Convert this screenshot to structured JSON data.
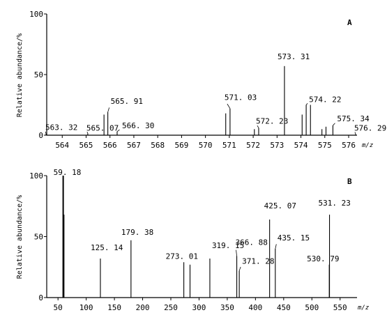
{
  "chart_data": [
    {
      "type": "bar",
      "panel_label": "A",
      "ylabel": "Relative abundance/%",
      "xlabel": "m/z",
      "xlim": [
        563.35,
        576.35
      ],
      "ylim": [
        0,
        100
      ],
      "xticks": [
        564,
        565,
        566,
        567,
        568,
        569,
        570,
        571,
        572,
        573,
        574,
        575,
        576
      ],
      "yticks": [
        0,
        50,
        100
      ],
      "peaks": [
        {
          "mz": 563.32,
          "rel": 1
        },
        {
          "mz": 565.07,
          "rel": 1.5
        },
        {
          "mz": 565.75,
          "rel": 17
        },
        {
          "mz": 565.91,
          "rel": 19
        },
        {
          "mz": 566.3,
          "rel": 3
        },
        {
          "mz": 570.85,
          "rel": 18
        },
        {
          "mz": 571.03,
          "rel": 22
        },
        {
          "mz": 572.05,
          "rel": 5
        },
        {
          "mz": 572.23,
          "rel": 6
        },
        {
          "mz": 573.31,
          "rel": 57
        },
        {
          "mz": 574.05,
          "rel": 17
        },
        {
          "mz": 574.22,
          "rel": 25
        },
        {
          "mz": 574.4,
          "rel": 25
        },
        {
          "mz": 574.88,
          "rel": 5
        },
        {
          "mz": 575.05,
          "rel": 7
        },
        {
          "mz": 575.34,
          "rel": 8
        },
        {
          "mz": 576.29,
          "rel": 1
        }
      ],
      "annotations": [
        {
          "text": "563. 32",
          "mz": 563.32,
          "rel": 1
        },
        {
          "text": "565. 07",
          "mz": 565.07,
          "rel": 1.5
        },
        {
          "text": "565. 91",
          "mz": 565.91,
          "rel": 19
        },
        {
          "text": "566. 30",
          "mz": 566.3,
          "rel": 3
        },
        {
          "text": "571. 03",
          "mz": 571.03,
          "rel": 22
        },
        {
          "text": "572. 23",
          "mz": 572.23,
          "rel": 6
        },
        {
          "text": "573. 31",
          "mz": 573.31,
          "rel": 57
        },
        {
          "text": "574. 22",
          "mz": 574.22,
          "rel": 25
        },
        {
          "text": "575. 34",
          "mz": 575.34,
          "rel": 8
        },
        {
          "text": "576. 29",
          "mz": 576.29,
          "rel": 1
        }
      ]
    },
    {
      "type": "bar",
      "panel_label": "B",
      "ylabel": "Relative abundance/%",
      "xlabel": "m/z",
      "xlim": [
        30,
        580
      ],
      "ylim": [
        0,
        100
      ],
      "xticks": [
        50,
        100,
        150,
        200,
        250,
        300,
        350,
        400,
        450,
        500,
        550
      ],
      "yticks": [
        0,
        50,
        100
      ],
      "peaks": [
        {
          "mz": 59.18,
          "rel": 100
        },
        {
          "mz": 60.1,
          "rel": 68
        },
        {
          "mz": 125.14,
          "rel": 32
        },
        {
          "mz": 179.38,
          "rel": 47
        },
        {
          "mz": 273.01,
          "rel": 29
        },
        {
          "mz": 284.0,
          "rel": 27
        },
        {
          "mz": 319.15,
          "rel": 32
        },
        {
          "mz": 366.88,
          "rel": 34
        },
        {
          "mz": 371.28,
          "rel": 22
        },
        {
          "mz": 425.07,
          "rel": 64
        },
        {
          "mz": 435.15,
          "rel": 40
        },
        {
          "mz": 530.79,
          "rel": 27
        },
        {
          "mz": 531.23,
          "rel": 68
        }
      ],
      "annotations": [
        {
          "text": "59. 18",
          "mz": 59.18,
          "rel": 100
        },
        {
          "text": "125. 14",
          "mz": 125.14,
          "rel": 32
        },
        {
          "text": "179. 38",
          "mz": 179.38,
          "rel": 47
        },
        {
          "text": "273. 01",
          "mz": 273.01,
          "rel": 29
        },
        {
          "text": "319. 15",
          "mz": 319.15,
          "rel": 32
        },
        {
          "text": "366. 88",
          "mz": 366.88,
          "rel": 34
        },
        {
          "text": "371. 28",
          "mz": 371.28,
          "rel": 22
        },
        {
          "text": "425. 07",
          "mz": 425.07,
          "rel": 64
        },
        {
          "text": "435. 15",
          "mz": 435.15,
          "rel": 40
        },
        {
          "text": "530. 79",
          "mz": 530.79,
          "rel": 27
        },
        {
          "text": "531. 23",
          "mz": 531.23,
          "rel": 68
        }
      ]
    }
  ]
}
